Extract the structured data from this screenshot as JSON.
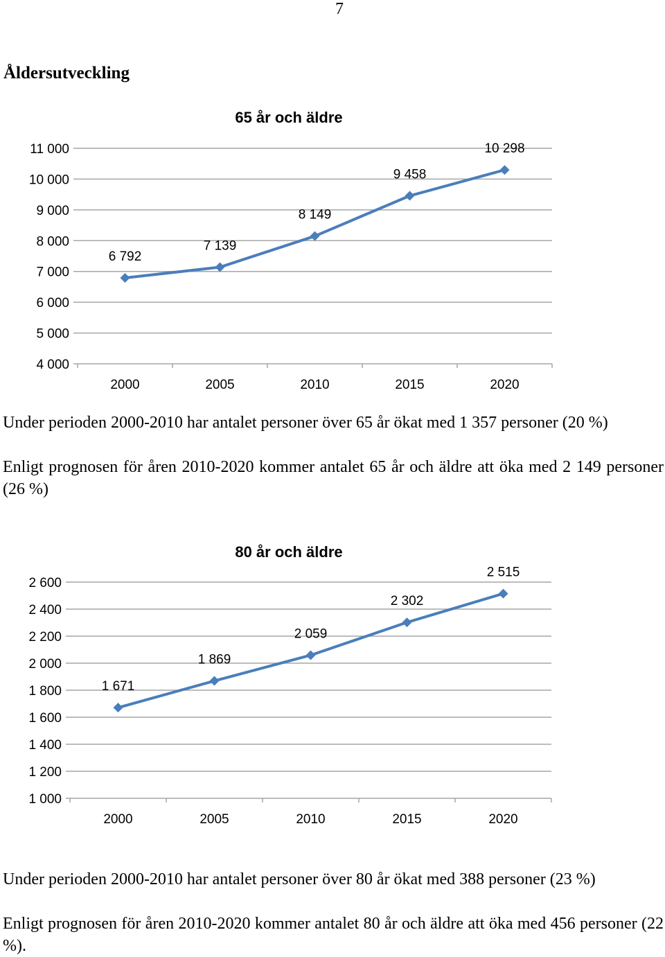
{
  "page_number": "7",
  "section_heading": "Åldersutveckling",
  "paragraphs": {
    "p1": "Under perioden 2000-2010 har antalet personer över 65 år ökat med 1 357 personer (20 %)",
    "p2": "Enligt prognosen för åren 2010-2020 kommer antalet 65 år och äldre att öka med 2 149 personer (26 %)",
    "p3": "Under perioden 2000-2010 har antalet personer över 80 år ökat med 388 personer (23 %)",
    "p4": "Enligt prognosen för åren 2010-2020 kommer antalet 80 år och äldre att öka med 456 personer (22 %)."
  },
  "chart_data": [
    {
      "type": "line",
      "title": "65 år och äldre",
      "categories": [
        "2000",
        "2005",
        "2010",
        "2015",
        "2020"
      ],
      "values": [
        6792,
        7139,
        8149,
        9458,
        10298
      ],
      "data_labels": [
        "6 792",
        "7 139",
        "8 149",
        "9 458",
        "10 298"
      ],
      "ylim": [
        4000,
        11000
      ],
      "y_ticks": [
        4000,
        5000,
        6000,
        7000,
        8000,
        9000,
        10000,
        11000
      ],
      "y_tick_labels": [
        "4 000",
        "5 000",
        "6 000",
        "7 000",
        "8 000",
        "9 000",
        "10 000",
        "11 000"
      ],
      "xlabel": "",
      "ylabel": "",
      "grid": true,
      "legend": "none",
      "marker": "diamond",
      "line_color": "#4a7ebb",
      "grid_color": "#a6a6a6"
    },
    {
      "type": "line",
      "title": "80 år och äldre",
      "categories": [
        "2000",
        "2005",
        "2010",
        "2015",
        "2020"
      ],
      "values": [
        1671,
        1869,
        2059,
        2302,
        2515
      ],
      "data_labels": [
        "1 671",
        "1 869",
        "2 059",
        "2 302",
        "2 515"
      ],
      "ylim": [
        1000,
        2600
      ],
      "y_ticks": [
        1000,
        1200,
        1400,
        1600,
        1800,
        2000,
        2200,
        2400,
        2600
      ],
      "y_tick_labels": [
        "1 000",
        "1 200",
        "1 400",
        "1 600",
        "1 800",
        "2 000",
        "2 200",
        "2 400",
        "2 600"
      ],
      "xlabel": "",
      "ylabel": "",
      "grid": true,
      "legend": "none",
      "marker": "diamond",
      "line_color": "#4a7ebb",
      "grid_color": "#a6a6a6"
    }
  ]
}
